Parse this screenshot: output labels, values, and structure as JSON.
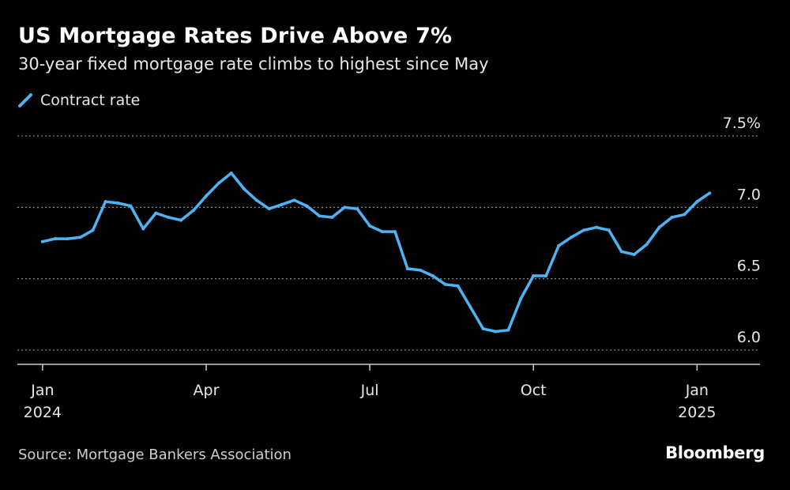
{
  "header": {
    "title": "US Mortgage Rates Drive Above 7%",
    "subtitle": "30-year fixed mortgage rate climbs to highest since May"
  },
  "footer": {
    "source": "Source: Mortgage Bankers Association",
    "brand": "Bloomberg"
  },
  "colors": {
    "background": "#000000",
    "line": "#4CB3F4",
    "grid": "#8a8a8a",
    "axis": "#cccccc",
    "text": "#e6e6e6"
  },
  "chart_data": {
    "type": "line",
    "title": "US Mortgage Rates Drive Above 7%",
    "subtitle": "30-year fixed mortgage rate climbs to highest since May",
    "xlabel": "",
    "ylabel": "",
    "ylim": [
      5.9,
      7.65
    ],
    "grid": true,
    "legend_position": "top-left",
    "y_ticks": [
      {
        "value": 7.5,
        "label": "7.5%"
      },
      {
        "value": 7.0,
        "label": "7.0"
      },
      {
        "value": 6.5,
        "label": "6.5"
      },
      {
        "value": 6.0,
        "label": "6.0"
      }
    ],
    "x_ticks": [
      {
        "week": 0,
        "label": "Jan",
        "sublabel": "2024"
      },
      {
        "week": 13,
        "label": "Apr",
        "sublabel": ""
      },
      {
        "week": 26,
        "label": "Jul",
        "sublabel": ""
      },
      {
        "week": 39,
        "label": "Oct",
        "sublabel": ""
      },
      {
        "week": 52,
        "label": "Jan",
        "sublabel": "2025"
      }
    ],
    "x_range": [
      -2,
      57
    ],
    "series": [
      {
        "name": "Contract rate",
        "x": [
          0,
          1,
          2,
          3,
          4,
          5,
          6,
          7,
          8,
          9,
          10,
          11,
          12,
          13,
          14,
          15,
          16,
          17,
          18,
          19,
          20,
          21,
          22,
          23,
          24,
          25,
          26,
          27,
          28,
          29,
          30,
          31,
          32,
          33,
          34,
          35,
          36,
          37,
          38,
          39,
          40,
          41,
          42,
          43,
          44,
          45,
          46,
          47,
          48,
          49,
          50,
          51,
          52,
          53
        ],
        "values": [
          6.76,
          6.78,
          6.78,
          6.79,
          6.84,
          7.04,
          7.03,
          7.01,
          6.85,
          6.96,
          6.93,
          6.91,
          6.98,
          7.08,
          7.17,
          7.24,
          7.13,
          7.05,
          6.99,
          7.02,
          7.05,
          7.01,
          6.94,
          6.93,
          7.0,
          6.99,
          6.87,
          6.83,
          6.83,
          6.57,
          6.56,
          6.52,
          6.46,
          6.45,
          6.3,
          6.15,
          6.13,
          6.14,
          6.36,
          6.52,
          6.52,
          6.73,
          6.79,
          6.84,
          6.86,
          6.84,
          6.69,
          6.67,
          6.74,
          6.86,
          6.93,
          6.95,
          7.04,
          7.1
        ]
      }
    ]
  }
}
